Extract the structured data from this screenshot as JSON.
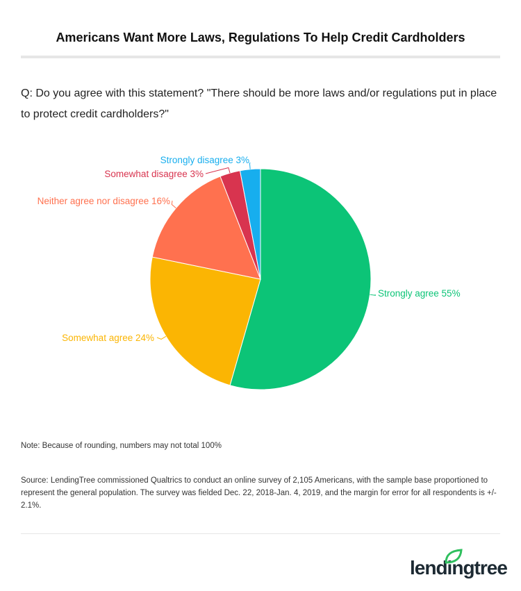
{
  "title": "Americans Want More Laws, Regulations To Help Credit Cardholders",
  "question": "Q: Do you agree with this statement? \"There should be more laws and/or regulations put in place to protect credit cardholders?\"",
  "note": "Note: Because of rounding, numbers may not total 100%",
  "source": "Source: LendingTree commissioned Qualtrics to conduct an online survey of 2,105 Americans, with the sample base proportioned to represent the general population. The survey was fielded Dec. 22, 2018-Jan. 4, 2019, and the margin for error for all respondents is +/- 2.1%.",
  "logo": "lendingtree",
  "chart_data": {
    "type": "pie",
    "start": "top, clockwise",
    "slices": [
      {
        "label": "Strongly agree",
        "value": 55,
        "display": "Strongly agree 55%",
        "color": "#0cc477"
      },
      {
        "label": "Somewhat agree",
        "value": 24,
        "display": "Somewhat agree 24%",
        "color": "#fbb503"
      },
      {
        "label": "Neither agree nor disagree",
        "value": 16,
        "display": "Neither agree nor disagree 16%",
        "color": "#ff714f"
      },
      {
        "label": "Somewhat disagree",
        "value": 3,
        "display": "Somewhat disagree 3%",
        "color": "#d8344f"
      },
      {
        "label": "Strongly disagree",
        "value": 3,
        "display": "Strongly disagree 3%",
        "color": "#17aeee"
      }
    ]
  }
}
